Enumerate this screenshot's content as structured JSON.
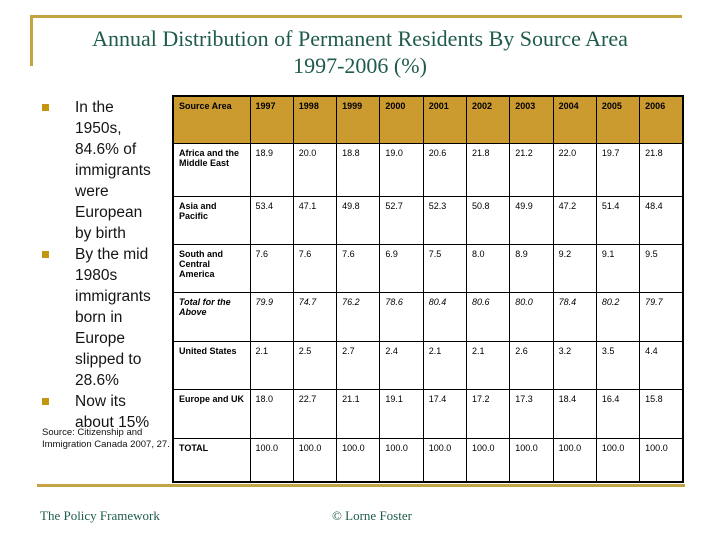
{
  "title": {
    "line1": "Annual Distribution of Permanent Residents By Source Area",
    "line2": "1997-2006 (%)"
  },
  "bullets": [
    "In the 1950s, 84.6% of immigrants were European by birth",
    "By the mid 1980s immigrants born in Europe slipped to 28.6%",
    "Now its about 15%"
  ],
  "source_note": "Source: Citizenship and Immigration Canada 2007, 27.",
  "footer": {
    "left": "The Policy Framework",
    "center": "© Lorne Foster"
  },
  "colors": {
    "title_green": "#1f5b4c",
    "accent_line_gold": "#c3a342",
    "bullet_gold": "#c6950f",
    "table_header_gold": "#cb9b30"
  },
  "chart_data": {
    "type": "table",
    "title": "Annual Distribution of Permanent Residents By Source Area 1997-2006 (%)",
    "columns": [
      "Source Area",
      "1997",
      "1998",
      "1999",
      "2000",
      "2001",
      "2002",
      "2003",
      "2004",
      "2005",
      "2006"
    ],
    "rows": [
      {
        "label": "Africa and the Middle East",
        "italic": false,
        "values": [
          "18.9",
          "20.0",
          "18.8",
          "19.0",
          "20.6",
          "21.8",
          "21.2",
          "22.0",
          "19.7",
          "21.8"
        ]
      },
      {
        "label": "Asia and Pacific",
        "italic": false,
        "values": [
          "53.4",
          "47.1",
          "49.8",
          "52.7",
          "52.3",
          "50.8",
          "49.9",
          "47.2",
          "51.4",
          "48.4"
        ]
      },
      {
        "label": "South and Central America",
        "italic": false,
        "values": [
          "7.6",
          "7.6",
          "7.6",
          "6.9",
          "7.5",
          "8.0",
          "8.9",
          "9.2",
          "9.1",
          "9.5"
        ]
      },
      {
        "label": "Total for the Above",
        "italic": true,
        "values": [
          "79.9",
          "74.7",
          "76.2",
          "78.6",
          "80.4",
          "80.6",
          "80.0",
          "78.4",
          "80.2",
          "79.7"
        ]
      },
      {
        "label": "United States",
        "italic": false,
        "values": [
          "2.1",
          "2.5",
          "2.7",
          "2.4",
          "2.1",
          "2.1",
          "2.6",
          "3.2",
          "3.5",
          "4.4"
        ]
      },
      {
        "label": "Europe and UK",
        "italic": false,
        "values": [
          "18.0",
          "22.7",
          "21.1",
          "19.1",
          "17.4",
          "17.2",
          "17.3",
          "18.4",
          "16.4",
          "15.8"
        ]
      },
      {
        "label": "TOTAL",
        "italic": false,
        "values": [
          "100.0",
          "100.0",
          "100.0",
          "100.0",
          "100.0",
          "100.0",
          "100.0",
          "100.0",
          "100.0",
          "100.0"
        ]
      }
    ]
  }
}
